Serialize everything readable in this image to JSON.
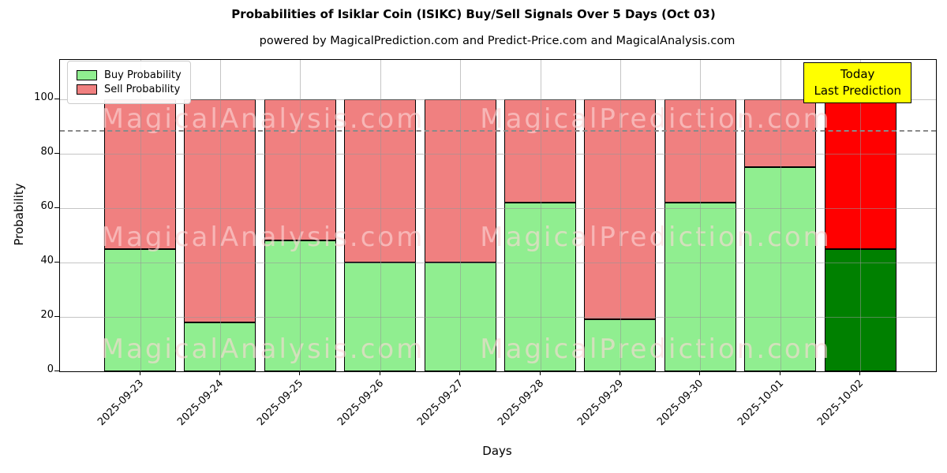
{
  "title": "Probabilities of Isiklar Coin (ISIKC) Buy/Sell Signals Over 5 Days (Oct 03)",
  "subtitle": "powered by MagicalPrediction.com and Predict-Price.com and MagicalAnalysis.com",
  "axes": {
    "xlabel": "Days",
    "ylabel": "Probability",
    "yticks": [
      0,
      20,
      40,
      60,
      80,
      100
    ],
    "ylim": [
      0,
      114.5
    ],
    "dashed_line_y": 110,
    "grid": true
  },
  "legend": {
    "position": "upper-left",
    "items": [
      {
        "label": "Buy Probability",
        "color": "#90ee90"
      },
      {
        "label": "Sell Probability",
        "color": "#f08080"
      }
    ]
  },
  "annotation": {
    "lines": [
      "Today",
      "Last Prediction"
    ],
    "bg_color": "#ffff00"
  },
  "watermarks": {
    "left_text": "MagicalAnalysis.com",
    "right_text": "MagicalPrediction.com"
  },
  "chart_data": {
    "type": "bar",
    "stacked": true,
    "title": "Probabilities of Isiklar Coin (ISIKC) Buy/Sell Signals Over 5 Days (Oct 03)",
    "xlabel": "Days",
    "ylabel": "Probability",
    "categories": [
      "2025-09-23",
      "2025-09-24",
      "2025-09-25",
      "2025-09-26",
      "2025-09-27",
      "2025-09-28",
      "2025-09-29",
      "2025-09-30",
      "2025-10-01",
      "2025-10-02"
    ],
    "series": [
      {
        "name": "Buy Probability",
        "color": "#90ee90",
        "values": [
          45,
          18,
          48,
          40,
          40,
          62,
          19,
          62,
          75,
          45
        ]
      },
      {
        "name": "Sell Probability",
        "color": "#f08080",
        "values": [
          55,
          82,
          52,
          60,
          60,
          38,
          81,
          38,
          25,
          55
        ]
      }
    ],
    "today_index": 9,
    "today_colors": {
      "buy": "#008000",
      "sell": "#ff0000"
    },
    "bar_edge_color": "#000000",
    "legend_position": "upper-left"
  }
}
